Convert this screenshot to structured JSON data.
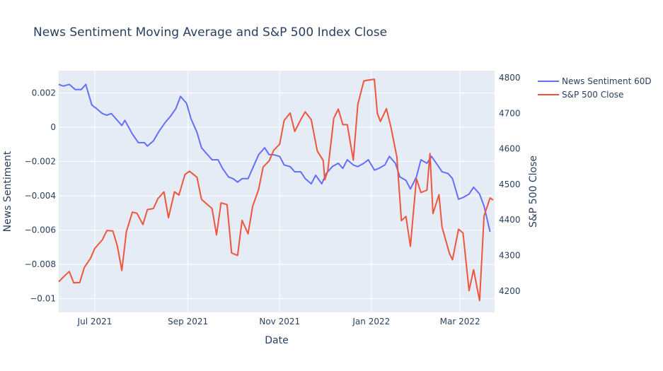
{
  "chart_data": {
    "type": "line",
    "title": "News Sentiment Moving Average and S&P 500 Index Close",
    "xlabel": "Date",
    "ylabel_left": "News Sentiment",
    "ylabel_right": "S&P 500 Close",
    "x_range": [
      "2021-06-07",
      "2022-03-24"
    ],
    "x_ticks": [
      {
        "date": "2021-07-01",
        "label": "Jul 2021"
      },
      {
        "date": "2021-09-01",
        "label": "Sep 2021"
      },
      {
        "date": "2021-11-01",
        "label": "Nov 2021"
      },
      {
        "date": "2022-01-01",
        "label": "Jan 2022"
      },
      {
        "date": "2022-03-01",
        "label": "Mar 2022"
      }
    ],
    "y_left": {
      "range": [
        -0.0108,
        0.0033
      ],
      "ticks": [
        0.002,
        0,
        -0.002,
        -0.004,
        -0.006,
        -0.008,
        -0.01
      ],
      "tick_labels": [
        "0.002",
        "0",
        "−0.002",
        "−0.004",
        "−0.006",
        "−0.008",
        "−0.01"
      ]
    },
    "y_right": {
      "range": [
        4140,
        4820
      ],
      "ticks": [
        4200,
        4300,
        4400,
        4500,
        4600,
        4700,
        4800
      ],
      "tick_labels": [
        "4200",
        "4300",
        "4400",
        "4500",
        "4600",
        "4700",
        "4800"
      ]
    },
    "legend_position": "top-right",
    "grid": true,
    "colors": {
      "sentiment": "#636efa",
      "sp500": "#ef553b",
      "plot_bg": "#e5ecf6",
      "grid": "#ffffff"
    },
    "series": [
      {
        "name": "News Sentiment 60D",
        "axis": "left",
        "color": "#636efa",
        "points": [
          [
            "2021-06-07",
            0.0025
          ],
          [
            "2021-06-10",
            0.0024
          ],
          [
            "2021-06-14",
            0.0025
          ],
          [
            "2021-06-18",
            0.0022
          ],
          [
            "2021-06-22",
            0.0022
          ],
          [
            "2021-06-25",
            0.0025
          ],
          [
            "2021-06-29",
            0.0013
          ],
          [
            "2021-07-02",
            0.0011
          ],
          [
            "2021-07-06",
            0.0008
          ],
          [
            "2021-07-09",
            0.0007
          ],
          [
            "2021-07-12",
            0.0008
          ],
          [
            "2021-07-16",
            0.0004
          ],
          [
            "2021-07-19",
            0.0001
          ],
          [
            "2021-07-21",
            0.0004
          ],
          [
            "2021-07-26",
            -0.0004
          ],
          [
            "2021-07-30",
            -0.0009
          ],
          [
            "2021-08-03",
            -0.0009
          ],
          [
            "2021-08-05",
            -0.0011
          ],
          [
            "2021-08-09",
            -0.0008
          ],
          [
            "2021-08-13",
            -0.0002
          ],
          [
            "2021-08-17",
            0.0003
          ],
          [
            "2021-08-20",
            0.0006
          ],
          [
            "2021-08-24",
            0.0011
          ],
          [
            "2021-08-27",
            0.0018
          ],
          [
            "2021-08-31",
            0.0014
          ],
          [
            "2021-09-03",
            0.0005
          ],
          [
            "2021-09-07",
            -0.0003
          ],
          [
            "2021-09-10",
            -0.0012
          ],
          [
            "2021-09-14",
            -0.0016
          ],
          [
            "2021-09-17",
            -0.0019
          ],
          [
            "2021-09-21",
            -0.0019
          ],
          [
            "2021-09-24",
            -0.0024
          ],
          [
            "2021-09-28",
            -0.0029
          ],
          [
            "2021-10-01",
            -0.003
          ],
          [
            "2021-10-04",
            -0.0032
          ],
          [
            "2021-10-07",
            -0.003
          ],
          [
            "2021-10-11",
            -0.003
          ],
          [
            "2021-10-14",
            -0.0024
          ],
          [
            "2021-10-18",
            -0.0016
          ],
          [
            "2021-10-20",
            -0.0014
          ],
          [
            "2021-10-22",
            -0.0012
          ],
          [
            "2021-10-25",
            -0.0016
          ],
          [
            "2021-10-28",
            -0.0016
          ],
          [
            "2021-11-01",
            -0.0017
          ],
          [
            "2021-11-04",
            -0.0022
          ],
          [
            "2021-11-08",
            -0.0023
          ],
          [
            "2021-11-11",
            -0.0026
          ],
          [
            "2021-11-15",
            -0.0026
          ],
          [
            "2021-11-18",
            -0.003
          ],
          [
            "2021-11-22",
            -0.0033
          ],
          [
            "2021-11-25",
            -0.0028
          ],
          [
            "2021-11-29",
            -0.0033
          ],
          [
            "2021-12-02",
            -0.0027
          ],
          [
            "2021-12-06",
            -0.0023
          ],
          [
            "2021-12-10",
            -0.0021
          ],
          [
            "2021-12-13",
            -0.0024
          ],
          [
            "2021-12-16",
            -0.0019
          ],
          [
            "2021-12-20",
            -0.0022
          ],
          [
            "2021-12-23",
            -0.0023
          ],
          [
            "2021-12-27",
            -0.0021
          ],
          [
            "2021-12-30",
            -0.0019
          ],
          [
            "2022-01-03",
            -0.0025
          ],
          [
            "2022-01-06",
            -0.0024
          ],
          [
            "2022-01-10",
            -0.0022
          ],
          [
            "2022-01-13",
            -0.0017
          ],
          [
            "2022-01-17",
            -0.0021
          ],
          [
            "2022-01-20",
            -0.0029
          ],
          [
            "2022-01-24",
            -0.0031
          ],
          [
            "2022-01-27",
            -0.0036
          ],
          [
            "2022-01-31",
            -0.0029
          ],
          [
            "2022-02-03",
            -0.0019
          ],
          [
            "2022-02-07",
            -0.0021
          ],
          [
            "2022-02-10",
            -0.0017
          ],
          [
            "2022-02-14",
            -0.0022
          ],
          [
            "2022-02-17",
            -0.0026
          ],
          [
            "2022-02-21",
            -0.0027
          ],
          [
            "2022-02-24",
            -0.003
          ],
          [
            "2022-02-28",
            -0.0042
          ],
          [
            "2022-03-03",
            -0.0041
          ],
          [
            "2022-03-07",
            -0.0039
          ],
          [
            "2022-03-10",
            -0.0035
          ],
          [
            "2022-03-14",
            -0.0039
          ],
          [
            "2022-03-17",
            -0.0046
          ],
          [
            "2022-03-21",
            -0.0061
          ]
        ]
      },
      {
        "name": "S&P 500 Close",
        "axis": "right",
        "color": "#ef553b",
        "points": [
          [
            "2021-06-07",
            4226
          ],
          [
            "2021-06-10",
            4239
          ],
          [
            "2021-06-14",
            4255
          ],
          [
            "2021-06-17",
            4223
          ],
          [
            "2021-06-21",
            4224
          ],
          [
            "2021-06-24",
            4266
          ],
          [
            "2021-06-28",
            4291
          ],
          [
            "2021-07-01",
            4320
          ],
          [
            "2021-07-06",
            4344
          ],
          [
            "2021-07-09",
            4370
          ],
          [
            "2021-07-13",
            4369
          ],
          [
            "2021-07-16",
            4327
          ],
          [
            "2021-07-19",
            4258
          ],
          [
            "2021-07-22",
            4367
          ],
          [
            "2021-07-26",
            4422
          ],
          [
            "2021-07-29",
            4419
          ],
          [
            "2021-08-02",
            4387
          ],
          [
            "2021-08-05",
            4429
          ],
          [
            "2021-08-09",
            4432
          ],
          [
            "2021-08-12",
            4460
          ],
          [
            "2021-08-16",
            4479
          ],
          [
            "2021-08-19",
            4406
          ],
          [
            "2021-08-23",
            4479
          ],
          [
            "2021-08-26",
            4470
          ],
          [
            "2021-08-30",
            4528
          ],
          [
            "2021-09-02",
            4537
          ],
          [
            "2021-09-07",
            4520
          ],
          [
            "2021-09-10",
            4458
          ],
          [
            "2021-09-14",
            4443
          ],
          [
            "2021-09-17",
            4432
          ],
          [
            "2021-09-20",
            4358
          ],
          [
            "2021-09-23",
            4448
          ],
          [
            "2021-09-27",
            4443
          ],
          [
            "2021-09-30",
            4307
          ],
          [
            "2021-10-04",
            4300
          ],
          [
            "2021-10-07",
            4399
          ],
          [
            "2021-10-11",
            4361
          ],
          [
            "2021-10-14",
            4438
          ],
          [
            "2021-10-18",
            4486
          ],
          [
            "2021-10-21",
            4549
          ],
          [
            "2021-10-25",
            4566
          ],
          [
            "2021-10-28",
            4596
          ],
          [
            "2021-11-01",
            4613
          ],
          [
            "2021-11-04",
            4680
          ],
          [
            "2021-11-08",
            4701
          ],
          [
            "2021-11-11",
            4649
          ],
          [
            "2021-11-15",
            4682
          ],
          [
            "2021-11-18",
            4704
          ],
          [
            "2021-11-22",
            4682
          ],
          [
            "2021-11-26",
            4594
          ],
          [
            "2021-11-30",
            4567
          ],
          [
            "2021-12-01",
            4513
          ],
          [
            "2021-12-03",
            4538
          ],
          [
            "2021-12-07",
            4686
          ],
          [
            "2021-12-10",
            4712
          ],
          [
            "2021-12-13",
            4668
          ],
          [
            "2021-12-16",
            4668
          ],
          [
            "2021-12-20",
            4568
          ],
          [
            "2021-12-23",
            4725
          ],
          [
            "2021-12-27",
            4791
          ],
          [
            "2021-12-29",
            4793
          ],
          [
            "2022-01-03",
            4796
          ],
          [
            "2022-01-05",
            4700
          ],
          [
            "2022-01-07",
            4677
          ],
          [
            "2022-01-11",
            4713
          ],
          [
            "2022-01-14",
            4662
          ],
          [
            "2022-01-18",
            4577
          ],
          [
            "2022-01-21",
            4398
          ],
          [
            "2022-01-24",
            4410
          ],
          [
            "2022-01-27",
            4326
          ],
          [
            "2022-01-31",
            4516
          ],
          [
            "2022-02-03",
            4477
          ],
          [
            "2022-02-07",
            4484
          ],
          [
            "2022-02-09",
            4587
          ],
          [
            "2022-02-11",
            4418
          ],
          [
            "2022-02-15",
            4471
          ],
          [
            "2022-02-17",
            4380
          ],
          [
            "2022-02-22",
            4305
          ],
          [
            "2022-02-24",
            4288
          ],
          [
            "2022-02-28",
            4374
          ],
          [
            "2022-03-03",
            4363
          ],
          [
            "2022-03-07",
            4201
          ],
          [
            "2022-03-10",
            4260
          ],
          [
            "2022-03-14",
            4173
          ],
          [
            "2022-03-17",
            4411
          ],
          [
            "2022-03-21",
            4462
          ],
          [
            "2022-03-23",
            4456
          ]
        ]
      }
    ]
  }
}
